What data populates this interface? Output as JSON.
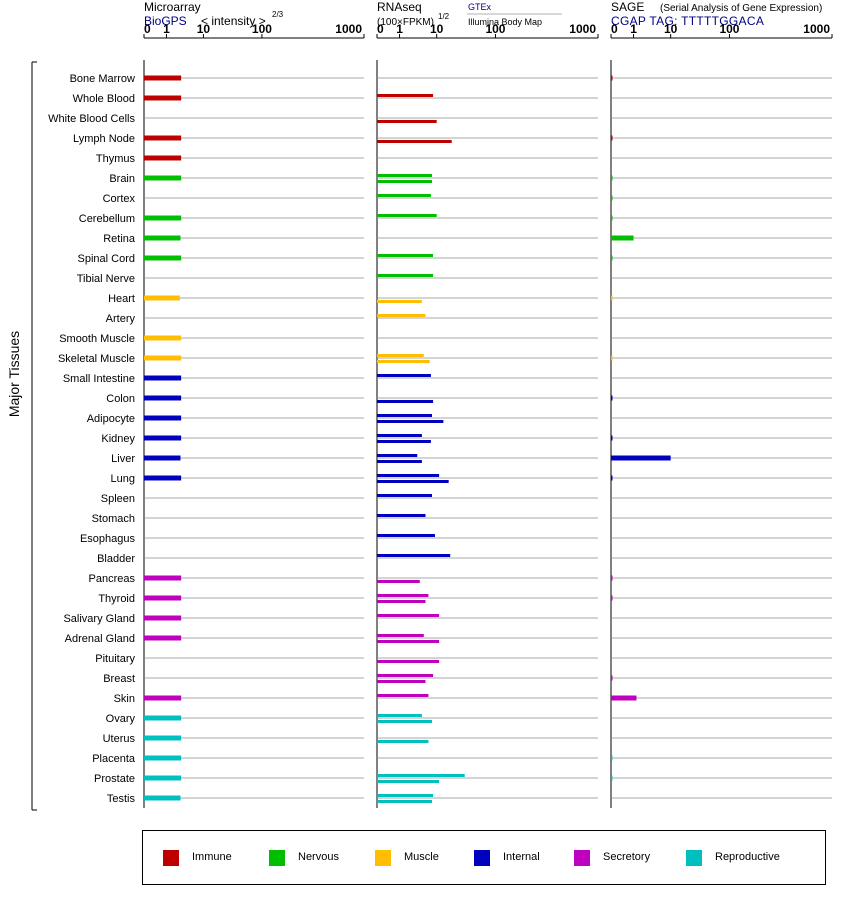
{
  "chart_data": {
    "type": "bar",
    "ylabel": "Major Tissues",
    "categories": [
      "Bone Marrow",
      "Whole Blood",
      "White Blood Cells",
      "Lymph Node",
      "Thymus",
      "Brain",
      "Cortex",
      "Cerebellum",
      "Retina",
      "Spinal Cord",
      "Tibial Nerve",
      "Heart",
      "Artery",
      "Smooth Muscle",
      "Skeletal Muscle",
      "Small Intestine",
      "Colon",
      "Adipocyte",
      "Kidney",
      "Liver",
      "Lung",
      "Spleen",
      "Stomach",
      "Esophagus",
      "Bladder",
      "Pancreas",
      "Thyroid",
      "Salivary Gland",
      "Adrenal Gland",
      "Pituitary",
      "Breast",
      "Skin",
      "Ovary",
      "Uterus",
      "Placenta",
      "Prostate",
      "Testis"
    ],
    "groups": [
      "immune",
      "immune",
      "immune",
      "immune",
      "immune",
      "nervous",
      "nervous",
      "nervous",
      "nervous",
      "nervous",
      "nervous",
      "muscle",
      "muscle",
      "muscle",
      "muscle",
      "internal",
      "internal",
      "internal",
      "internal",
      "internal",
      "internal",
      "internal",
      "internal",
      "internal",
      "internal",
      "secretory",
      "secretory",
      "secretory",
      "secretory",
      "secretory",
      "secretory",
      "secretory",
      "reproductive",
      "reproductive",
      "reproductive",
      "reproductive",
      "reproductive"
    ],
    "colors": {
      "immune": "#bf0000",
      "nervous": "#00bf00",
      "muscle": "#ffbf00",
      "internal": "#0000bf",
      "secretory": "#bf00bf",
      "reproductive": "#00bfbf"
    },
    "ticks": [
      "0",
      "1",
      "10",
      "100",
      "1000"
    ],
    "panels": [
      {
        "title": "Microarray",
        "source": "BioGPS",
        "scale_note": "< intensity >",
        "scale_exp": "2/3",
        "values": [
          2.5,
          2.5,
          null,
          2.5,
          2.5,
          2.5,
          null,
          2.5,
          2.4,
          2.5,
          null,
          2.3,
          null,
          2.5,
          2.5,
          2.5,
          2.5,
          2.5,
          2.5,
          2.4,
          2.5,
          null,
          null,
          null,
          null,
          2.5,
          2.5,
          2.5,
          2.5,
          null,
          null,
          2.5,
          2.5,
          2.5,
          2.5,
          2.5,
          2.4
        ]
      },
      {
        "title": "RNAseq",
        "subtitle": "(100×FPKM)",
        "scale_exp": "1/2",
        "source_top": "GTEx",
        "source_bottom": "Illumina Body Map",
        "values_gtex": [
          null,
          8,
          null,
          null,
          null,
          7.5,
          7,
          10,
          null,
          8,
          8,
          null,
          5,
          null,
          4.5,
          7,
          null,
          7.5,
          4,
          3,
          11,
          7.5,
          5,
          9,
          17,
          null,
          6,
          11,
          4.5,
          null,
          8,
          6,
          4,
          null,
          null,
          30,
          8
        ],
        "values_ibm": [
          null,
          null,
          10,
          18,
          null,
          7.5,
          null,
          null,
          null,
          null,
          null,
          4,
          null,
          null,
          6.5,
          null,
          8,
          13,
          7,
          4,
          16,
          null,
          null,
          null,
          null,
          3.5,
          5,
          null,
          11,
          11,
          5,
          null,
          7.5,
          6,
          null,
          11,
          7.5
        ]
      },
      {
        "title": "SAGE",
        "subtitle_full": "(Serial Analysis of Gene Expression)",
        "source": "CGAP TAG: TTTTTGGACA",
        "values": [
          0.05,
          null,
          null,
          0.05,
          null,
          0.05,
          0.05,
          0.05,
          1,
          0.05,
          null,
          0.03,
          null,
          null,
          0.03,
          null,
          0.05,
          null,
          0.05,
          10,
          0.05,
          null,
          null,
          null,
          null,
          0.05,
          0.05,
          null,
          null,
          null,
          0.05,
          1.2,
          null,
          null,
          0.05,
          0.05,
          null
        ]
      }
    ],
    "legend": [
      {
        "key": "immune",
        "label": "Immune"
      },
      {
        "key": "nervous",
        "label": "Nervous"
      },
      {
        "key": "muscle",
        "label": "Muscle"
      },
      {
        "key": "internal",
        "label": "Internal"
      },
      {
        "key": "secretory",
        "label": "Secretory"
      },
      {
        "key": "reproductive",
        "label": "Reproductive"
      }
    ]
  }
}
